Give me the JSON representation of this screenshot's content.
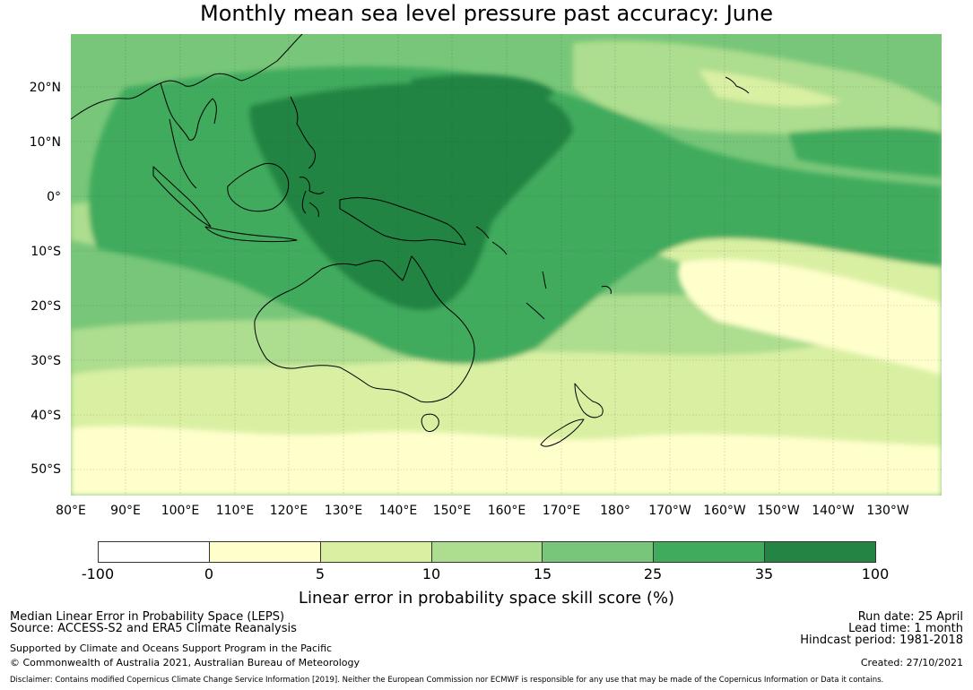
{
  "title": "Monthly mean sea level pressure past accuracy: June",
  "map": {
    "lat_labels": [
      "20°N",
      "10°N",
      "0°",
      "10°S",
      "20°S",
      "30°S",
      "40°S",
      "50°S"
    ],
    "lon_labels": [
      "80°E",
      "90°E",
      "100°E",
      "110°E",
      "120°E",
      "130°E",
      "140°E",
      "150°E",
      "160°E",
      "170°E",
      "180°",
      "170°W",
      "160°W",
      "150°W",
      "140°W",
      "130°W"
    ],
    "lat_range": [
      -55,
      30
    ],
    "lon_range": [
      80,
      240
    ],
    "gridlines": true
  },
  "colorbar": {
    "ticks": [
      "-100",
      "0",
      "5",
      "10",
      "15",
      "25",
      "35",
      "100"
    ],
    "colors": [
      "#ffffff",
      "#ffffcc",
      "#d9f0a3",
      "#addd8e",
      "#78c679",
      "#41ab5d",
      "#238443"
    ],
    "label": "Linear error in probability space skill score (%)"
  },
  "footer": {
    "left_line1": "Median Linear Error in Probability Space (LEPS)",
    "left_line2": "Source: ACCESS-S2 and ERA5 Climate Reanalysis",
    "left_line3": "Supported by Climate and Oceans Support Program in the Pacific",
    "left_line4": "© Commonwealth of Australia 2021, Australian Bureau of Meteorology",
    "right_line1": "Run date: 25 April",
    "right_line2": "Lead time: 1 month",
    "right_line3": "Hindcast period: 1981-2018",
    "right_line4": "Created: 27/10/2021",
    "disclaimer": "Disclaimer: Contains modified Copernicus Climate Change Service Information [2019]. Neither the European Commission nor ECMWF is responsible for any use that may be made of the Copernicus Information or Data it contains."
  }
}
